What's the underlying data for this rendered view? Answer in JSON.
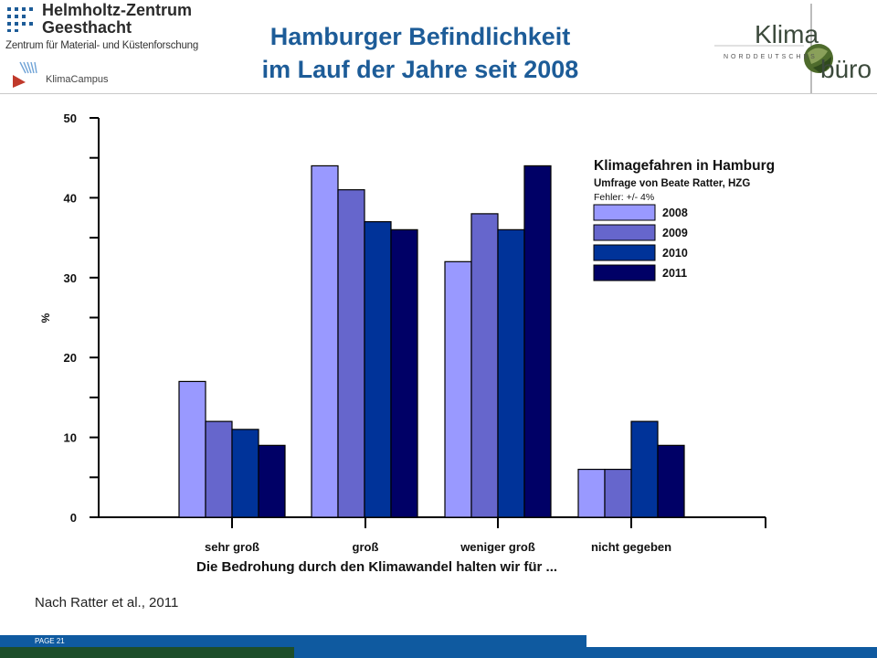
{
  "header": {
    "org_name_line1": "Helmholtz-Zentrum",
    "org_name_line2": "Geesthacht",
    "org_subtitle": "Zentrum für Material- und Küstenforschung",
    "campus_name": "KlimaCampus",
    "title_line1": "Hamburger Befindlichkeit",
    "title_line2": "im Lauf der Jahre seit 2008",
    "right_logo_word1": "Klima",
    "right_logo_nord": "NORDDEUTSCHES",
    "right_logo_word2": "büro"
  },
  "colors": {
    "title": "#1d5c98",
    "2008": "#9999ff",
    "2009": "#6666cc",
    "2010": "#003399",
    "2011": "#000066",
    "footer_blue": "#0f5aa0",
    "footer_green": "#1d4e2a"
  },
  "chart_data": {
    "type": "bar",
    "categories": [
      "sehr groß",
      "groß",
      "weniger groß",
      "nicht gegeben"
    ],
    "series": [
      {
        "name": "2008",
        "values": [
          17,
          44,
          32,
          6
        ]
      },
      {
        "name": "2009",
        "values": [
          12,
          41,
          38,
          6
        ]
      },
      {
        "name": "2010",
        "values": [
          11,
          37,
          36,
          12
        ]
      },
      {
        "name": "2011",
        "values": [
          9,
          36,
          44,
          9
        ]
      }
    ],
    "ylim": [
      0,
      50
    ],
    "yticks": [
      0,
      10,
      20,
      30,
      40,
      50
    ],
    "ylabel": "%",
    "xlabel": "Die Bedrohung durch den Klimawandel halten wir für ...",
    "legend": {
      "title": "Klimagefahren in Hamburg",
      "subtitle": "Umfrage von Beate Ratter, HZG",
      "note": "Fehler: +/- 4%",
      "placement": "top-right"
    },
    "grid": false
  },
  "source_text": "Nach Ratter et al., 2011",
  "footer": {
    "page_label": "PAGE 21"
  }
}
